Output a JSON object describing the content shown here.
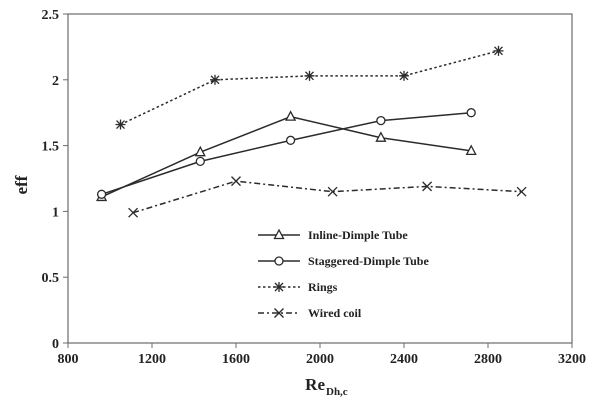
{
  "chart_data": {
    "type": "line",
    "title": "",
    "xlabel": "Re",
    "xlabel_sub": "Dh,c",
    "ylabel": "eff",
    "xlim": [
      800,
      3200
    ],
    "ylim": [
      0,
      2.5
    ],
    "xticks": [
      "800",
      "1200",
      "1600",
      "2000",
      "2400",
      "2800",
      "3200"
    ],
    "yticks": [
      "0",
      "0.5",
      "1",
      "1.5",
      "2",
      "2.5"
    ],
    "grid": false,
    "legend_position": "bottom-right",
    "series": [
      {
        "name": "Inline-Dimple Tube",
        "marker": "triangle",
        "line": "solid",
        "x": [
          960,
          1430,
          1860,
          2290,
          2720
        ],
        "y": [
          1.11,
          1.45,
          1.72,
          1.56,
          1.46
        ]
      },
      {
        "name": "Staggered-Dimple Tube",
        "marker": "circle",
        "line": "solid",
        "x": [
          960,
          1430,
          1860,
          2290,
          2720
        ],
        "y": [
          1.13,
          1.38,
          1.54,
          1.69,
          1.75
        ]
      },
      {
        "name": "Rings",
        "marker": "asterisk",
        "line": "dotted",
        "x": [
          1050,
          1500,
          1950,
          2400,
          2850
        ],
        "y": [
          1.66,
          2.0,
          2.03,
          2.03,
          2.22
        ]
      },
      {
        "name": "Wired coil",
        "marker": "x",
        "line": "dashdot",
        "x": [
          1110,
          1600,
          2060,
          2510,
          2960
        ],
        "y": [
          0.99,
          1.23,
          1.15,
          1.19,
          1.15
        ]
      }
    ]
  }
}
